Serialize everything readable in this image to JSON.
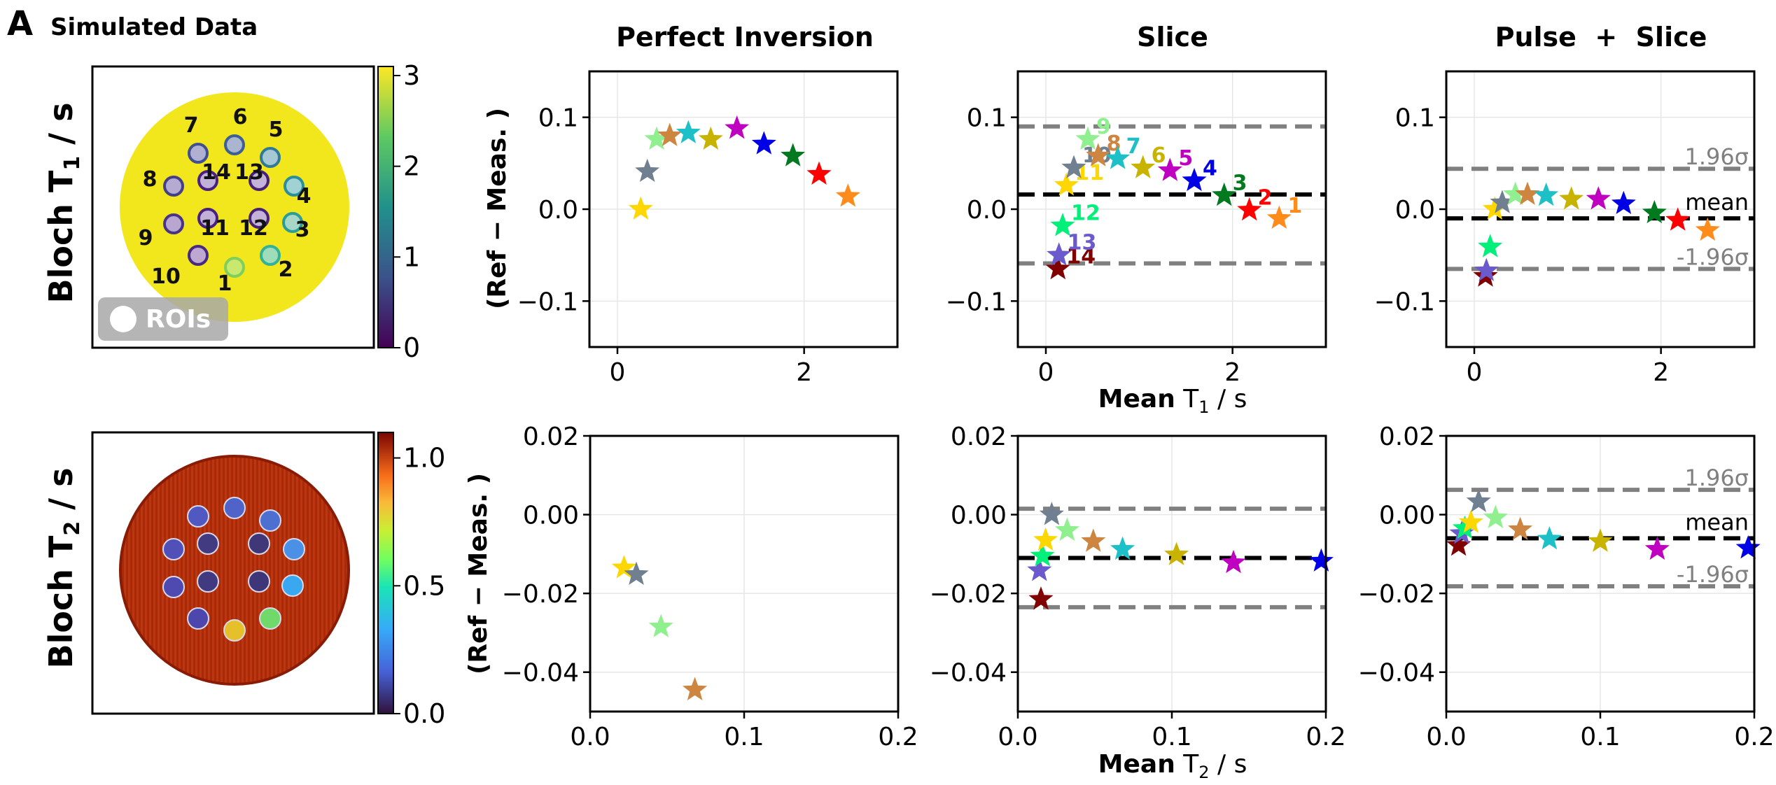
{
  "panel_label": "A",
  "panel_title": "Simulated Data",
  "row_labels": {
    "t1": "Bloch T",
    "t1_sub": "1",
    "t1_unit": " / s",
    "t2": "Bloch T",
    "t2_sub": "2",
    "t2_unit": " / s"
  },
  "images": {
    "t1_colorbar_ticks": [
      "0",
      "1",
      "2",
      "3"
    ],
    "t2_colorbar_ticks": [
      "0.0",
      "0.5",
      "1.0"
    ],
    "roi_badge": "ROIs",
    "roi_labels": [
      "1",
      "2",
      "3",
      "4",
      "5",
      "6",
      "7",
      "8",
      "9",
      "10",
      "11",
      "12",
      "13",
      "14"
    ]
  },
  "columns": [
    "Perfect Inversion",
    "Slice",
    "Pulse  +  Slice"
  ],
  "ylabel": "(Ref − Meas. )",
  "xlabels": {
    "t1": "Mean",
    "t1_rest": " T",
    "t1_sub": "1",
    "t1_unit": " / s",
    "t2": "Mean",
    "t2_rest": " T",
    "t2_sub": "2",
    "t2_unit": " / s"
  },
  "legend_text": {
    "upper": "1.96σ",
    "mean": "mean",
    "lower": "-1.96σ"
  },
  "colors": {
    "1": "#ff8c1a",
    "2": "#ff0000",
    "3": "#007a1f",
    "4": "#0000e6",
    "5": "#c000c0",
    "6": "#c8b400",
    "7": "#1ec0c8",
    "8": "#cd8540",
    "9": "#90f090",
    "10": "#708090",
    "11": "#ffd700",
    "12": "#00f07a",
    "13": "#6a5acd",
    "14": "#800000",
    "mean_line": "#000000",
    "loa_line": "#808080"
  },
  "chart_data": [
    {
      "id": "t1-perfect",
      "type": "scatter",
      "xlim": [
        -0.3,
        3.0
      ],
      "ylim": [
        -0.15,
        0.15
      ],
      "xticks": [
        "0",
        "2"
      ],
      "yticks": [
        "−0.1",
        "0.0",
        "0.1"
      ],
      "points": [
        {
          "roi": "11",
          "x": 0.25,
          "y": 0.0
        },
        {
          "roi": "10",
          "x": 0.32,
          "y": 0.041
        },
        {
          "roi": "9",
          "x": 0.42,
          "y": 0.076
        },
        {
          "roi": "8",
          "x": 0.56,
          "y": 0.08
        },
        {
          "roi": "7",
          "x": 0.76,
          "y": 0.083
        },
        {
          "roi": "6",
          "x": 1.0,
          "y": 0.076
        },
        {
          "roi": "5",
          "x": 1.28,
          "y": 0.088
        },
        {
          "roi": "4",
          "x": 1.57,
          "y": 0.071
        },
        {
          "roi": "3",
          "x": 1.88,
          "y": 0.058
        },
        {
          "roi": "2",
          "x": 2.16,
          "y": 0.038
        },
        {
          "roi": "1",
          "x": 2.47,
          "y": 0.014
        }
      ]
    },
    {
      "id": "t1-slice",
      "type": "scatter",
      "xlim": [
        -0.3,
        3.0
      ],
      "ylim": [
        -0.15,
        0.15
      ],
      "xticks": [
        "0",
        "2"
      ],
      "yticks": [
        "−0.1",
        "0.0",
        "0.1"
      ],
      "mean": 0.016,
      "upper": 0.09,
      "lower": -0.059,
      "points": [
        {
          "roi": "14",
          "x": 0.13,
          "y": -0.065,
          "label": "14"
        },
        {
          "roi": "13",
          "x": 0.14,
          "y": -0.05,
          "label": "13"
        },
        {
          "roi": "12",
          "x": 0.18,
          "y": -0.018,
          "label": "12"
        },
        {
          "roi": "11",
          "x": 0.22,
          "y": 0.026,
          "label": "11"
        },
        {
          "roi": "10",
          "x": 0.3,
          "y": 0.045,
          "label": "10"
        },
        {
          "roi": "9",
          "x": 0.45,
          "y": 0.076,
          "label": "9"
        },
        {
          "roi": "8",
          "x": 0.56,
          "y": 0.058,
          "label": "8"
        },
        {
          "roi": "7",
          "x": 0.77,
          "y": 0.055,
          "label": "7"
        },
        {
          "roi": "6",
          "x": 1.04,
          "y": 0.045,
          "label": "6"
        },
        {
          "roi": "5",
          "x": 1.33,
          "y": 0.042,
          "label": "5"
        },
        {
          "roi": "4",
          "x": 1.59,
          "y": 0.031,
          "label": "4"
        },
        {
          "roi": "3",
          "x": 1.91,
          "y": 0.015,
          "label": "3"
        },
        {
          "roi": "2",
          "x": 2.18,
          "y": -0.001,
          "label": "2"
        },
        {
          "roi": "1",
          "x": 2.5,
          "y": -0.01,
          "label": "1"
        }
      ]
    },
    {
      "id": "t1-pulse-slice",
      "type": "scatter",
      "xlim": [
        -0.3,
        3.0
      ],
      "ylim": [
        -0.15,
        0.15
      ],
      "xticks": [
        "0",
        "2"
      ],
      "yticks": [
        "−0.1",
        "0.0",
        "0.1"
      ],
      "mean": -0.01,
      "upper": 0.044,
      "lower": -0.065,
      "points": [
        {
          "roi": "14",
          "x": 0.12,
          "y": -0.073
        },
        {
          "roi": "13",
          "x": 0.13,
          "y": -0.067
        },
        {
          "roi": "12",
          "x": 0.17,
          "y": -0.041
        },
        {
          "roi": "11",
          "x": 0.22,
          "y": 0.0
        },
        {
          "roi": "10",
          "x": 0.3,
          "y": 0.007
        },
        {
          "roi": "9",
          "x": 0.44,
          "y": 0.016
        },
        {
          "roi": "8",
          "x": 0.57,
          "y": 0.016
        },
        {
          "roi": "7",
          "x": 0.77,
          "y": 0.015
        },
        {
          "roi": "6",
          "x": 1.04,
          "y": 0.011
        },
        {
          "roi": "5",
          "x": 1.33,
          "y": 0.011
        },
        {
          "roi": "4",
          "x": 1.6,
          "y": 0.006
        },
        {
          "roi": "3",
          "x": 1.93,
          "y": -0.004
        },
        {
          "roi": "2",
          "x": 2.18,
          "y": -0.012
        },
        {
          "roi": "1",
          "x": 2.5,
          "y": -0.023
        }
      ]
    },
    {
      "id": "t2-perfect",
      "type": "scatter",
      "xlim": [
        0.0,
        0.2
      ],
      "ylim": [
        -0.05,
        0.02
      ],
      "xticks": [
        "0.0",
        "0.1",
        "0.2"
      ],
      "yticks": [
        "−0.04",
        "−0.02",
        "0.00",
        "0.02"
      ],
      "points": [
        {
          "roi": "11",
          "x": 0.022,
          "y": -0.0135
        },
        {
          "roi": "10",
          "x": 0.03,
          "y": -0.0152
        },
        {
          "roi": "9",
          "x": 0.046,
          "y": -0.0285
        },
        {
          "roi": "8",
          "x": 0.068,
          "y": -0.0445
        }
      ]
    },
    {
      "id": "t2-slice",
      "type": "scatter",
      "xlim": [
        0.0,
        0.2
      ],
      "ylim": [
        -0.05,
        0.02
      ],
      "xticks": [
        "0.0",
        "0.1",
        "0.2"
      ],
      "yticks": [
        "−0.04",
        "−0.02",
        "0.00",
        "0.02"
      ],
      "mean": -0.011,
      "upper": 0.0015,
      "lower": -0.0235,
      "points": [
        {
          "roi": "14",
          "x": 0.015,
          "y": -0.0215
        },
        {
          "roi": "13",
          "x": 0.014,
          "y": -0.0142
        },
        {
          "roi": "12",
          "x": 0.016,
          "y": -0.0105
        },
        {
          "roi": "11",
          "x": 0.018,
          "y": -0.0065
        },
        {
          "roi": "10",
          "x": 0.022,
          "y": 0.0
        },
        {
          "roi": "9",
          "x": 0.032,
          "y": -0.004
        },
        {
          "roi": "8",
          "x": 0.049,
          "y": -0.0068
        },
        {
          "roi": "7",
          "x": 0.068,
          "y": -0.0088
        },
        {
          "roi": "6",
          "x": 0.103,
          "y": -0.0102
        },
        {
          "roi": "5",
          "x": 0.14,
          "y": -0.0122
        },
        {
          "roi": "4",
          "x": 0.197,
          "y": -0.0118
        }
      ]
    },
    {
      "id": "t2-pulse-slice",
      "type": "scatter",
      "xlim": [
        0.0,
        0.2
      ],
      "ylim": [
        -0.05,
        0.02
      ],
      "xticks": [
        "0.0",
        "0.1",
        "0.2"
      ],
      "yticks": [
        "−0.04",
        "−0.02",
        "0.00",
        "0.02"
      ],
      "mean": -0.006,
      "upper": 0.0063,
      "lower": -0.0182,
      "points": [
        {
          "roi": "14",
          "x": 0.008,
          "y": -0.0078
        },
        {
          "roi": "13",
          "x": 0.01,
          "y": -0.0048
        },
        {
          "roi": "12",
          "x": 0.012,
          "y": -0.0035
        },
        {
          "roi": "11",
          "x": 0.016,
          "y": -0.002
        },
        {
          "roi": "10",
          "x": 0.021,
          "y": 0.0033
        },
        {
          "roi": "9",
          "x": 0.032,
          "y": -0.0008
        },
        {
          "roi": "8",
          "x": 0.048,
          "y": -0.0038
        },
        {
          "roi": "7",
          "x": 0.067,
          "y": -0.0062
        },
        {
          "roi": "6",
          "x": 0.1,
          "y": -0.0068
        },
        {
          "roi": "5",
          "x": 0.137,
          "y": -0.0088
        },
        {
          "roi": "4",
          "x": 0.196,
          "y": -0.0085
        }
      ]
    }
  ]
}
